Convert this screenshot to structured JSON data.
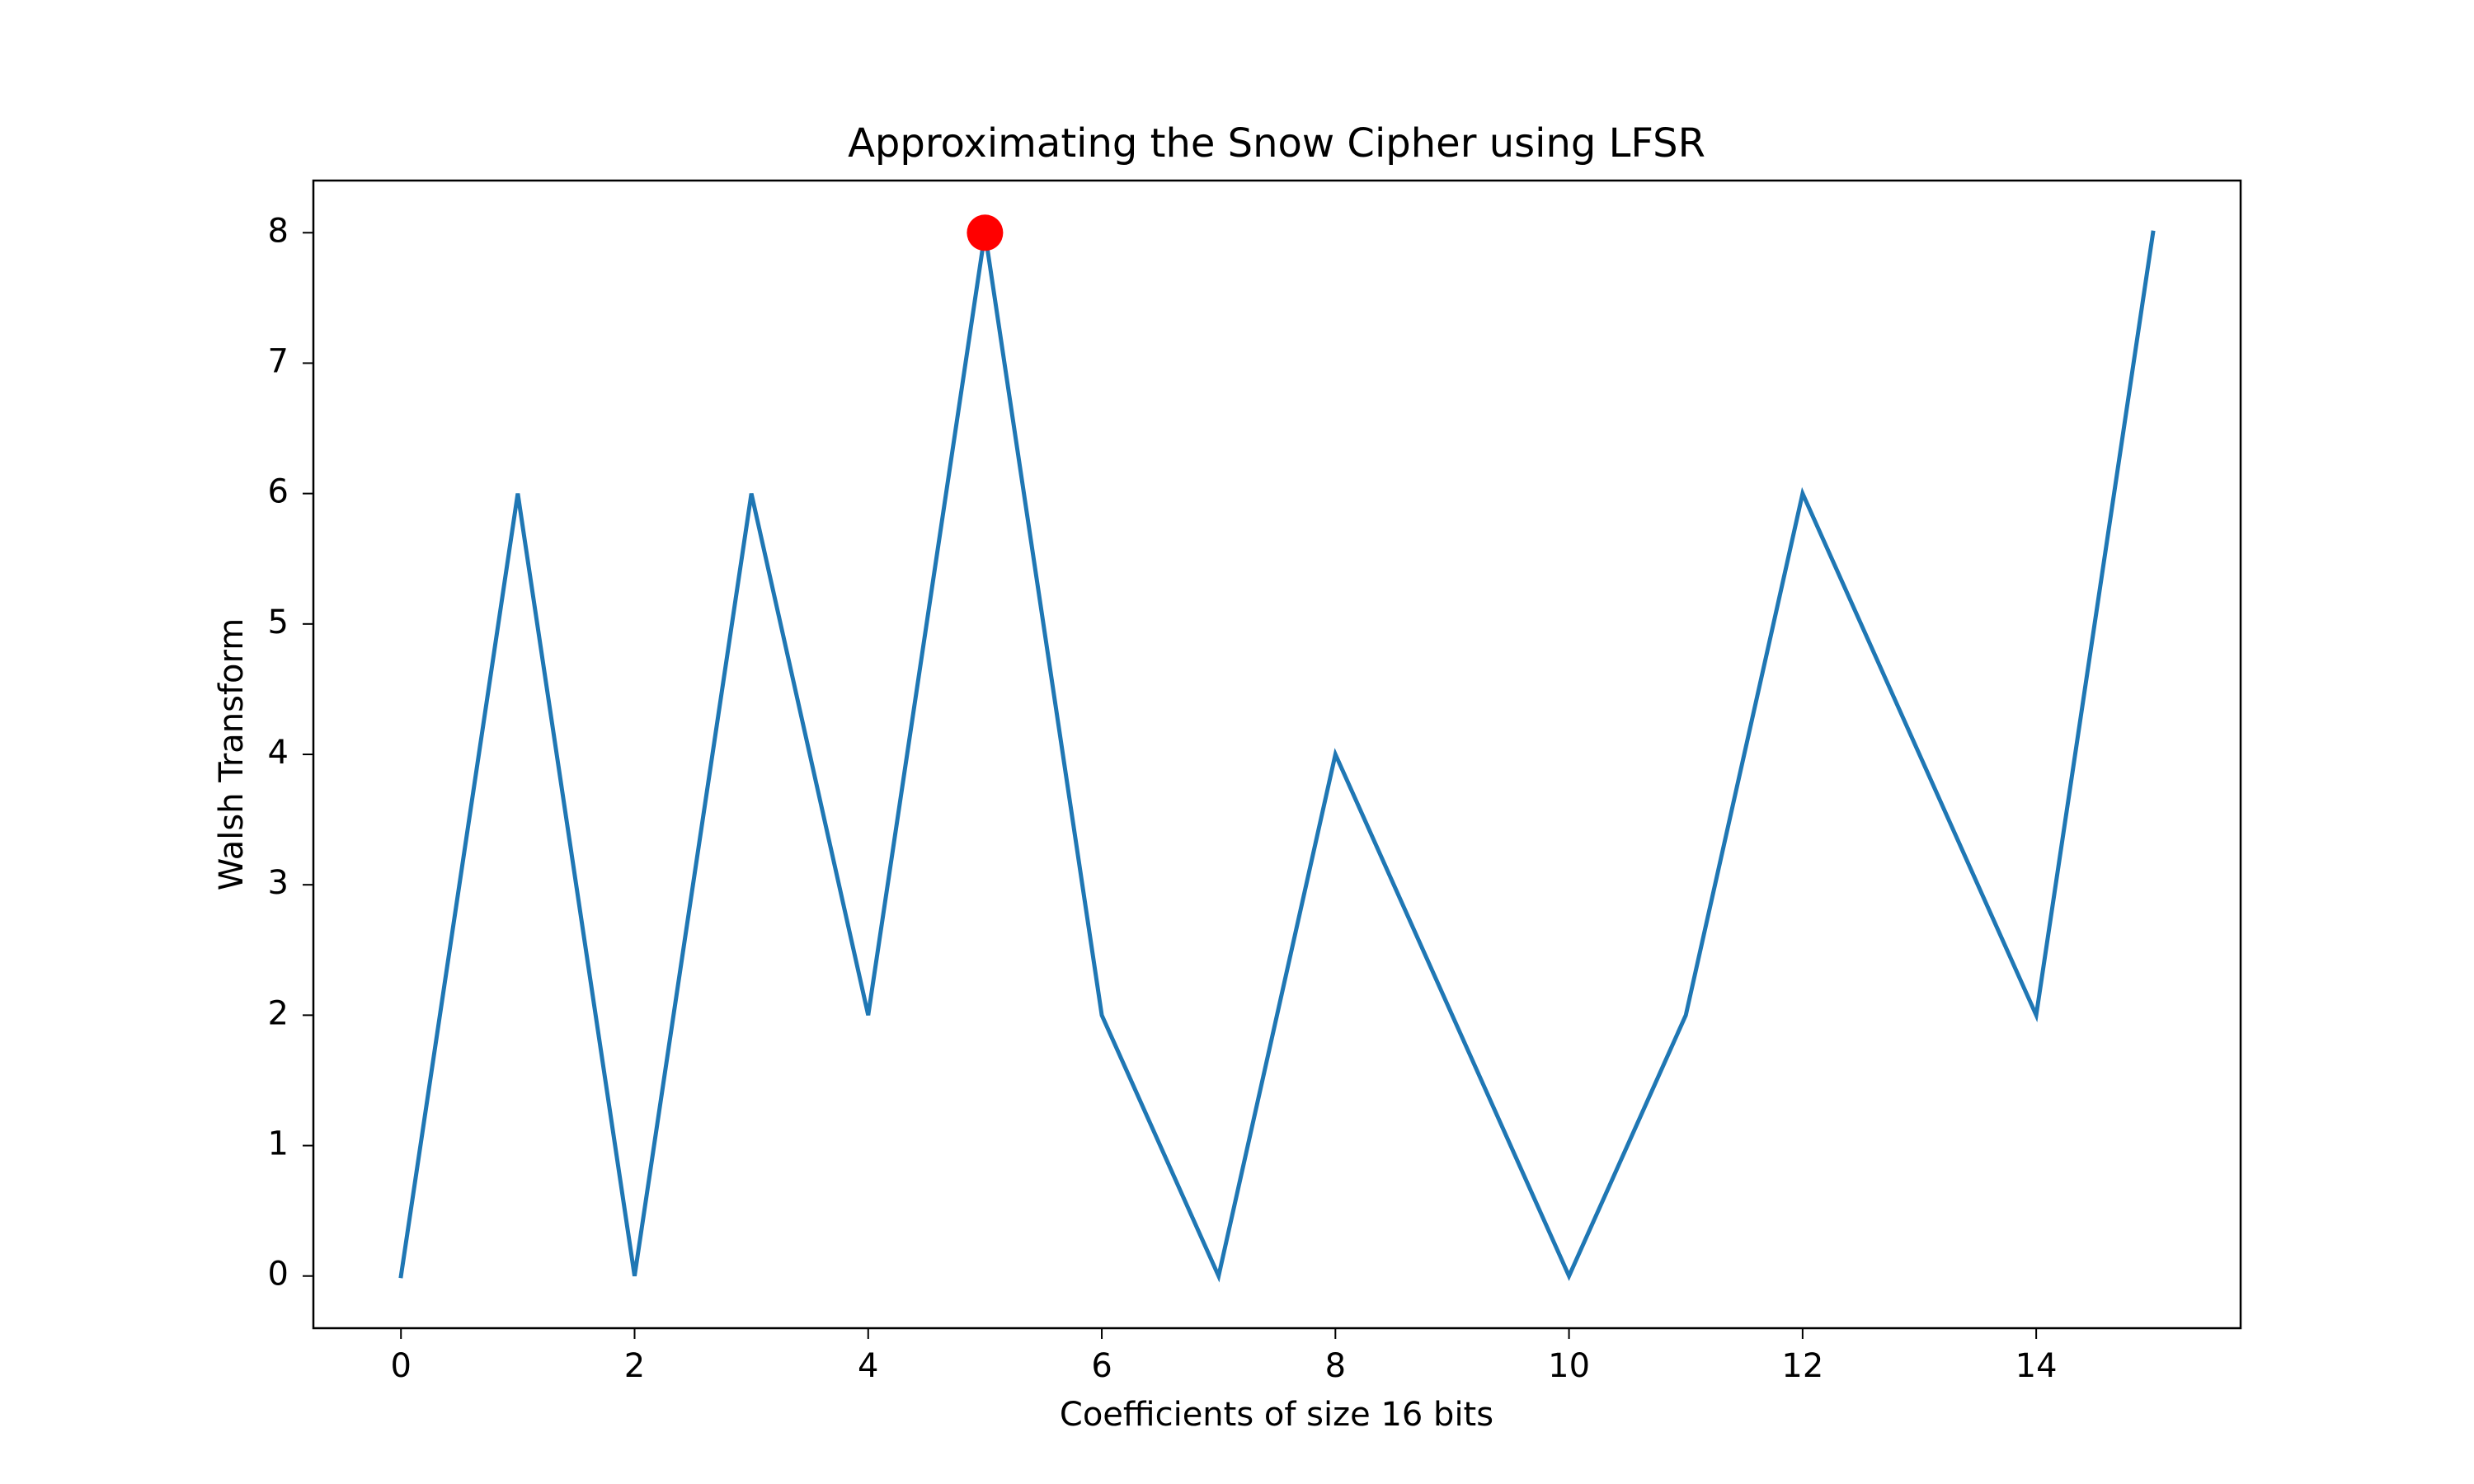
{
  "chart_data": {
    "type": "line",
    "title": "Approximating the Snow Cipher using LFSR",
    "xlabel": "Coefficients of size 16 bits",
    "ylabel": "Walsh Transform",
    "x": [
      0,
      1,
      2,
      3,
      4,
      5,
      6,
      7,
      8,
      9,
      10,
      11,
      12,
      13,
      14,
      15
    ],
    "series": [
      {
        "values": [
          0,
          6,
          0,
          6,
          2,
          8,
          2,
          0,
          4,
          2,
          0,
          2,
          6,
          4,
          2,
          8
        ],
        "color": "#1f77b4"
      }
    ],
    "highlight": {
      "x": 5,
      "y": 8,
      "color": "#ff0000"
    },
    "xlim": [
      -0.75,
      15.75
    ],
    "ylim": [
      -0.4,
      8.4
    ],
    "xticks": [
      0,
      2,
      4,
      6,
      8,
      10,
      12,
      14
    ],
    "xtick_labels": [
      "0",
      "2",
      "4",
      "6",
      "8",
      "10",
      "12",
      "14"
    ],
    "yticks": [
      0,
      1,
      2,
      3,
      4,
      5,
      6,
      7,
      8
    ],
    "ytick_labels": [
      "0",
      "1",
      "2",
      "3",
      "4",
      "5",
      "6",
      "7",
      "8"
    ],
    "grid": false,
    "legend": "none"
  }
}
